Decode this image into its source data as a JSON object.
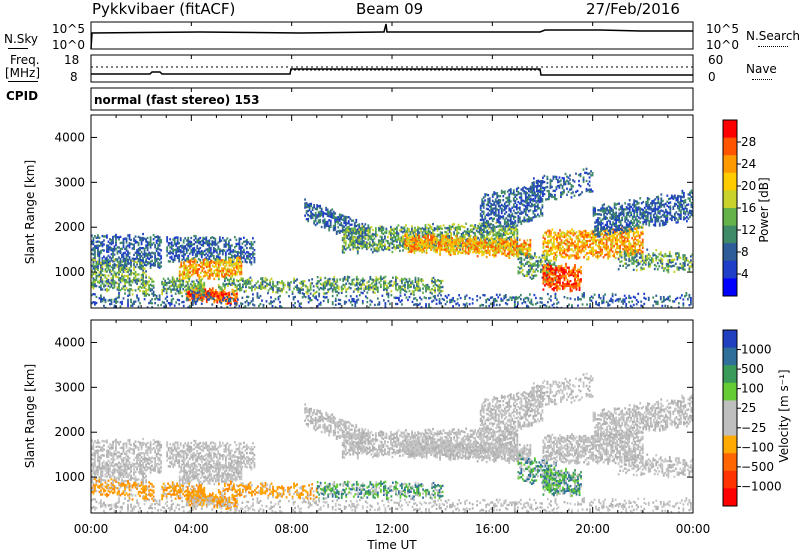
{
  "header": {
    "radar": "Pykkvibaer (fitACF)",
    "beam": "Beam 09",
    "date": "27/Feb/2016"
  },
  "nsky_panel": {
    "left_label": "N.Sky",
    "right_label": "N.Search",
    "left_ticks": [
      "10^5",
      "10^0"
    ],
    "right_ticks": [
      "10^5",
      "10^0"
    ]
  },
  "freq_panel": {
    "left_label": "Freq.",
    "left_unit": "[MHz]",
    "right_label": "Nave",
    "left_ticks": [
      "18",
      "8"
    ],
    "right_ticks": [
      "60",
      "0"
    ],
    "cpid_label": "CPID",
    "cpid_text": "normal (fast stereo) 153"
  },
  "chart_data": [
    {
      "type": "heatmap",
      "ylabel": "Slant Range [km]",
      "ylim": [
        200,
        4500
      ],
      "y_ticks": [
        "4000",
        "3000",
        "2000",
        "1000"
      ],
      "colorbar": {
        "label": "Power [dB]",
        "ticks": [
          "28",
          "24",
          "20",
          "16",
          "12",
          "8",
          "4"
        ],
        "colors": [
          "#ff0000",
          "#ff5500",
          "#ff9900",
          "#ffcc00",
          "#c8d22a",
          "#66b24a",
          "#3f8a67",
          "#2f5d9a",
          "#1f3fc8",
          "#0000ff"
        ]
      }
    },
    {
      "type": "heatmap",
      "ylabel": "Slant Range [km]",
      "ylim": [
        200,
        4500
      ],
      "y_ticks": [
        "4000",
        "3000",
        "2000",
        "1000"
      ],
      "colorbar": {
        "label": "Velocity [m s⁻¹]",
        "ticks": [
          "1000",
          "500",
          "100",
          "25",
          "−25",
          "−100",
          "−500",
          "−1000"
        ],
        "colors": [
          "#2040c0",
          "#2f6f9a",
          "#3a9a5a",
          "#66cc33",
          "#bfbfbf",
          "#bfbfbf",
          "#ffaa00",
          "#ff6600",
          "#ff3300",
          "#ff0000"
        ]
      }
    }
  ],
  "x_axis": {
    "label": "Time UT",
    "ticks": [
      "00:00",
      "04:00",
      "08:00",
      "12:00",
      "16:00",
      "20:00",
      "00:00"
    ]
  }
}
